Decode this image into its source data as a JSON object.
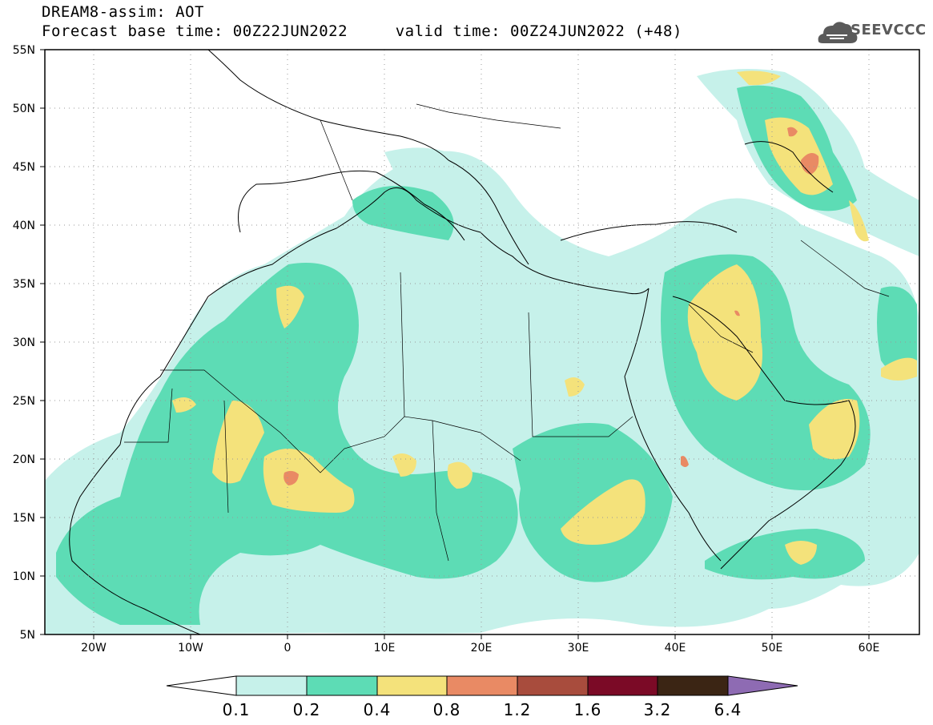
{
  "header": {
    "title": "DREAM8-assim: AOT",
    "subtitle": "Forecast base time: 00Z22JUN2022     valid time: 00Z24JUN2022 (+48)"
  },
  "logo": {
    "text": "SEEVCCC",
    "icon": "cloud-icon"
  },
  "map": {
    "lon_range": [
      -25,
      65
    ],
    "lat_range": [
      5,
      55
    ],
    "lat_ticks": [
      "55N",
      "50N",
      "45N",
      "40N",
      "35N",
      "30N",
      "25N",
      "20N",
      "15N",
      "10N",
      "5N"
    ],
    "lon_ticks": [
      "20W",
      "10W",
      "0",
      "10E",
      "20E",
      "30E",
      "40E",
      "50E",
      "60E"
    ],
    "grid": "dotted",
    "field": "Aerosol optical thickness"
  },
  "colorbar": {
    "labels": [
      "0.1",
      "0.2",
      "0.4",
      "0.8",
      "1.2",
      "1.6",
      "3.2",
      "6.4"
    ],
    "colors": [
      "#ffffff",
      "#c6f1ea",
      "#5ddcb5",
      "#f4e27b",
      "#e98a64",
      "#a84c3d",
      "#7b0a26",
      "#3b2514",
      "#8e6bb3"
    ]
  }
}
